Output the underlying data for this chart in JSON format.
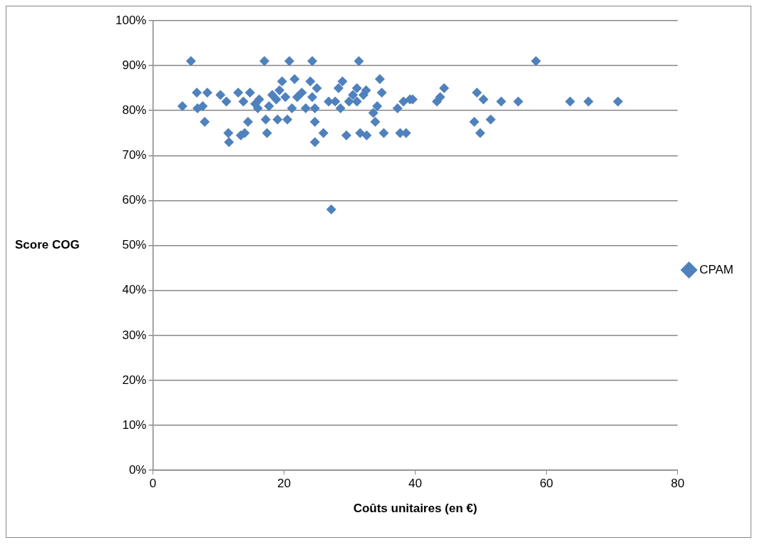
{
  "chart_data": {
    "type": "scatter",
    "xlabel": "Coûts unitaires (en €)",
    "ylabel": "Score COG",
    "xlim": [
      0,
      80
    ],
    "xticks": [
      0,
      20,
      40,
      60,
      80
    ],
    "ylim": [
      0,
      100
    ],
    "yticks": [
      {
        "value": 0,
        "label": "0%"
      },
      {
        "value": 10,
        "label": "10%"
      },
      {
        "value": 20,
        "label": "20%"
      },
      {
        "value": 30,
        "label": "30%"
      },
      {
        "value": 40,
        "label": "40%"
      },
      {
        "value": 50,
        "label": "50%"
      },
      {
        "value": 60,
        "label": "60%"
      },
      {
        "value": 70,
        "label": "70%"
      },
      {
        "value": 80,
        "label": "80%"
      },
      {
        "value": 90,
        "label": "90%"
      },
      {
        "value": 100,
        "label": "100%"
      }
    ],
    "grid": "y",
    "legend": "right",
    "marker": "diamond",
    "series": [
      {
        "name": "CPAM",
        "color": "#4f81bd",
        "x": [
          4.5,
          5.8,
          6.7,
          6.8,
          7.6,
          7.9,
          8.3,
          10.3,
          11.2,
          11.5,
          11.6,
          13,
          13.4,
          14,
          14.5,
          13.8,
          14.8,
          15.6,
          16,
          16.2,
          17,
          17.2,
          17.4,
          17.7,
          18.2,
          18.8,
          19,
          19.3,
          19.7,
          20.2,
          20.5,
          20.8,
          21.2,
          21.6,
          22,
          22.7,
          23.3,
          24,
          24.3,
          24.3,
          24.7,
          24.7,
          24.7,
          25,
          26,
          26.8,
          27.2,
          27.8,
          28.3,
          28.6,
          28.9,
          29.5,
          29.9,
          30.5,
          31.1,
          31.1,
          31.4,
          31.6,
          32.1,
          32.5,
          32.6,
          33.6,
          33.9,
          34.2,
          34.6,
          34.9,
          35.2,
          37.3,
          37.7,
          38.2,
          38.6,
          39.2,
          39.6,
          43.3,
          43.8,
          44.4,
          49,
          49.4,
          49.9,
          50.4,
          51.5,
          53.1,
          55.7,
          58.4,
          63.6,
          66.4,
          70.9
        ],
        "values": [
          81,
          91,
          84,
          80.5,
          81,
          77.5,
          84,
          83.5,
          82,
          75,
          73,
          84,
          74.5,
          75,
          77.5,
          82,
          84,
          81.5,
          80.5,
          82.5,
          91,
          78,
          75,
          81,
          83.5,
          82.5,
          78,
          84.5,
          86.5,
          83,
          78,
          91,
          80.5,
          87,
          83,
          84,
          80.5,
          86.5,
          91,
          83,
          80.5,
          77.5,
          73,
          85,
          75,
          82,
          58,
          82,
          85,
          80.5,
          86.5,
          74.5,
          82,
          83.5,
          85,
          82,
          91,
          75,
          83.5,
          84.5,
          74.5,
          79.5,
          77.5,
          81,
          87,
          84,
          75,
          80.5,
          75,
          82,
          75,
          82.5,
          82.5,
          82,
          83,
          85,
          77.5,
          84,
          75,
          82.5,
          78,
          82,
          82,
          91,
          82,
          82,
          82
        ]
      }
    ]
  }
}
